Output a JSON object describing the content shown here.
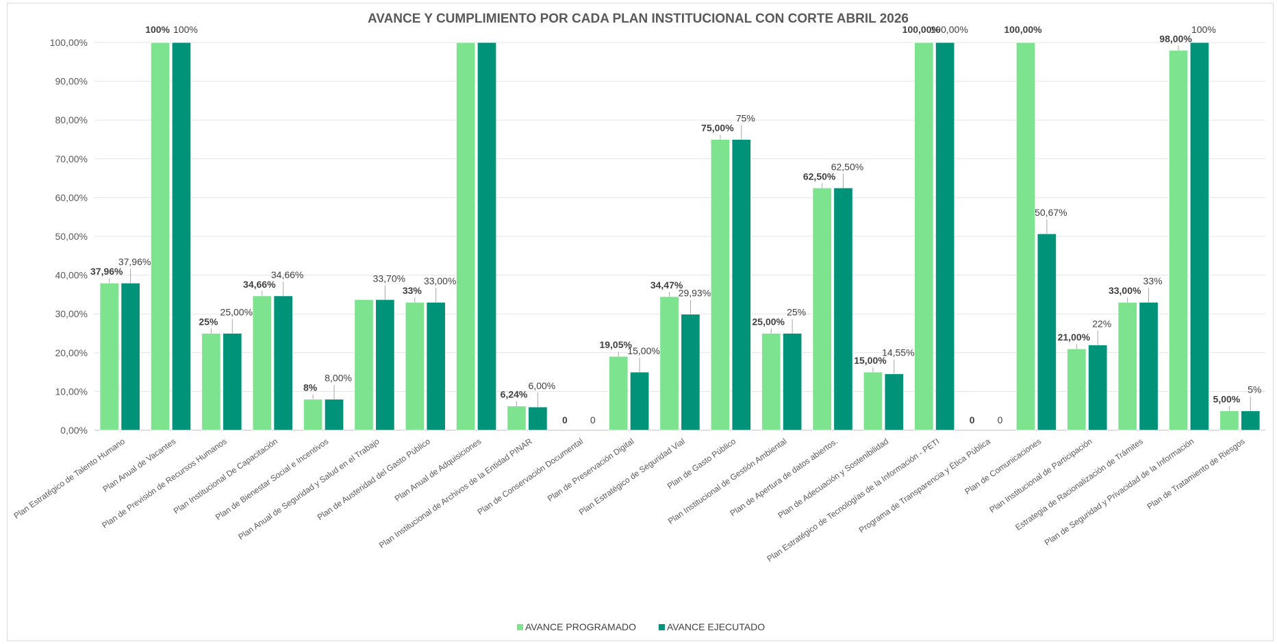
{
  "chart_data": {
    "type": "bar",
    "title": "AVANCE Y CUMPLIMIENTO POR CADA PLAN INSTITUCIONAL CON CORTE ABRIL 2026",
    "ylim": [
      0,
      100
    ],
    "yticks": [
      "0,00%",
      "10,00%",
      "20,00%",
      "30,00%",
      "40,00%",
      "50,00%",
      "60,00%",
      "70,00%",
      "80,00%",
      "90,00%",
      "100,00%"
    ],
    "grid": true,
    "legend_position": "bottom",
    "categories": [
      "Plan Estratégico de Talento Humano",
      "Plan Anual de Vacantes",
      "Plan de Previsión de Recursos Humanos",
      "Plan Institucional De Capacitación",
      "Plan de Bienestar Social e Incentivos",
      "Plan Anual de Seguridad y Salud en el Trabajo",
      "Plan de Austeridad del Gasto Público",
      "Plan Anual de Adquisiciones",
      "Plan Institucional de Archivos de la Entidad PINAR",
      "Plan de Conservación Documental",
      "Plan de Preservación Digital",
      "Plan Estratégico de Seguridad Vial",
      "Plan de Gasto Público",
      "Plan Institucional de Gestión Ambiental",
      "Plan de Apertura de datos abiertos.",
      "Plan de Adecuación y Sostenibilidad",
      "Plan Estratégico de Tecnologías de la Información - PETI",
      "Programa de Transparencia y Ética Pública",
      "Plan de Comunicaciones",
      "Plan Institucional de Participación",
      "Estrategia de Racionalización de Trámites",
      "Plan de Seguridad y Privacidad de la Información",
      "Plan de Tratamiento de Riesgos"
    ],
    "series": [
      {
        "name": "AVANCE PROGRAMADO",
        "color": "#7de38f",
        "values": [
          37.96,
          100,
          25,
          34.66,
          8,
          33.7,
          33,
          100,
          6.24,
          0,
          19.05,
          34.47,
          75,
          25,
          62.5,
          15,
          100,
          0,
          100,
          21,
          33,
          98,
          5
        ],
        "labels": [
          "37,96%",
          "100%",
          "25%",
          "34,66%",
          "8%",
          "",
          "33%",
          "",
          "6,24%",
          "0",
          "19,05%",
          "34,47%",
          "75,00%",
          "25,00%",
          "62,50%",
          "15,00%",
          "100,00%",
          "0",
          "100,00%",
          "21,00%",
          "33,00%",
          "98,00%",
          "5,00%"
        ]
      },
      {
        "name": "AVANCE EJECUTADO",
        "color": "#00937a",
        "values": [
          37.96,
          100,
          25,
          34.66,
          8,
          33.7,
          33,
          100,
          6,
          0,
          15,
          29.93,
          75,
          25,
          62.5,
          14.55,
          100,
          0,
          50.67,
          22,
          33,
          100,
          5
        ],
        "labels": [
          "37,96%",
          "100%",
          "25,00%",
          "34,66%",
          "8,00%",
          "33,70%",
          "33,00%",
          "",
          "6,00%",
          "0",
          "15,00%",
          "29,93%",
          "75%",
          "25%",
          "62,50%",
          "14,55%",
          "100,00%",
          "0",
          "50,67%",
          "22%",
          "33%",
          "100%",
          "5%"
        ]
      }
    ]
  },
  "legend": {
    "programado": "AVANCE PROGRAMADO",
    "ejecutado": "AVANCE EJECUTADO"
  }
}
